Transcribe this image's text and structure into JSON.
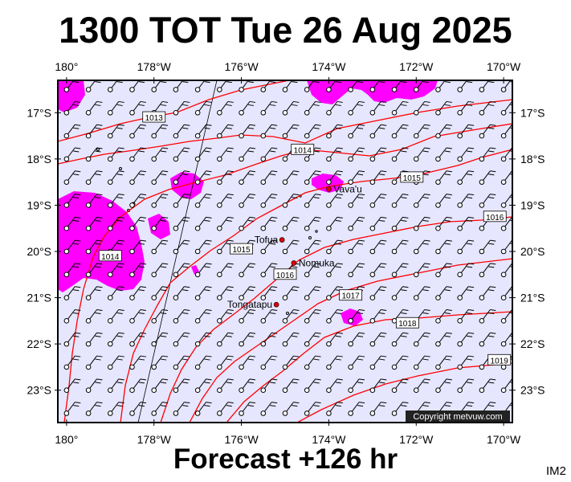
{
  "title": "1300 TOT Tue 26 Aug 2025",
  "footer": "Forecast +126 hr",
  "image_tag": "IM2",
  "copyright": "Copyright metvuw.com",
  "map": {
    "lon_range": [
      -180.2,
      -169.8
    ],
    "lat_range": [
      -23.7,
      -16.3
    ],
    "lon_ticks": [
      "180°",
      "178°W",
      "176°W",
      "174°W",
      "172°W",
      "170°W"
    ],
    "lon_tick_values": [
      -180,
      -178,
      -176,
      -174,
      -172,
      -170
    ],
    "lat_ticks": [
      "17°S",
      "18°S",
      "19°S",
      "20°S",
      "21°S",
      "22°S",
      "23°S"
    ],
    "lat_tick_values": [
      -17,
      -18,
      -19,
      -20,
      -21,
      -22,
      -23
    ],
    "places": [
      {
        "name": "Vava'u",
        "lon": -174.0,
        "lat": -18.65
      },
      {
        "name": "Tofua",
        "lon": -175.07,
        "lat": -19.75
      },
      {
        "name": "Nomuka",
        "lon": -174.8,
        "lat": -20.25
      },
      {
        "name": "Tongatapu",
        "lon": -175.2,
        "lat": -21.15
      }
    ],
    "isobars": [
      {
        "label": "1013",
        "label_lon": -178.0,
        "label_lat": -17.1
      },
      {
        "label": "1014",
        "label_lon": -174.6,
        "label_lat": -17.8
      },
      {
        "label": "1014",
        "label_lon": -179.0,
        "label_lat": -20.1
      },
      {
        "label": "1015",
        "label_lon": -172.1,
        "label_lat": -18.4
      },
      {
        "label": "1015",
        "label_lon": -176.0,
        "label_lat": -19.95
      },
      {
        "label": "1016",
        "label_lon": -170.2,
        "label_lat": -19.25
      },
      {
        "label": "1016",
        "label_lon": -175.0,
        "label_lat": -20.5
      },
      {
        "label": "1017",
        "label_lon": -173.5,
        "label_lat": -20.95
      },
      {
        "label": "1018",
        "label_lon": -172.2,
        "label_lat": -21.55
      },
      {
        "label": "1019",
        "label_lon": -170.1,
        "label_lat": -22.35
      }
    ],
    "colors": {
      "ocean": "#e6e6ff",
      "rain": "#ff00ff",
      "isobar": "#ff0000",
      "place_marker": "#dd0000",
      "wind_barb": "#000000"
    }
  }
}
